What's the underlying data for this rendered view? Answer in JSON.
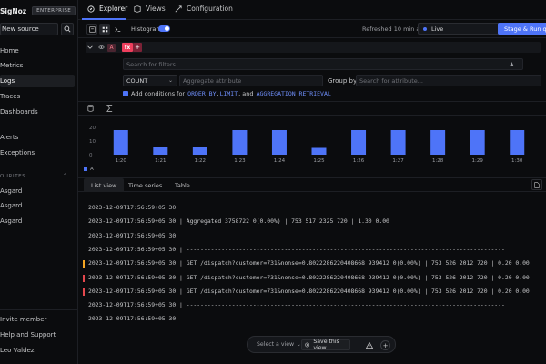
{
  "sidebar": {
    "brand": "SigNoz",
    "edition": "ENTERPRISE",
    "new_source": "New source",
    "nav": [
      {
        "label": "Home"
      },
      {
        "label": "Metrics"
      },
      {
        "label": "Logs",
        "active": true
      },
      {
        "label": "Traces"
      },
      {
        "label": "Dashboards"
      },
      {
        "label": "Alerts"
      },
      {
        "label": "Exceptions"
      }
    ],
    "favourites_title": "OURITES",
    "favourites": [
      "Asgard",
      "Asgard",
      "Asgard"
    ],
    "bottom": [
      "Invite member",
      "Help and Support",
      "Leo Valdez"
    ]
  },
  "tabs": [
    {
      "label": "Explorer",
      "active": true,
      "icon": "compass-icon"
    },
    {
      "label": "Views",
      "icon": "views-icon"
    },
    {
      "label": "Configuration",
      "icon": "config-icon"
    }
  ],
  "toolbar": {
    "histogram_label": "Histogram",
    "histogram_on": true,
    "refreshed": "Refreshed 10 min ago",
    "live": "Live",
    "stage_run": "Stage & Run query"
  },
  "query": {
    "letter": "A",
    "fx": "fx",
    "plus": "+",
    "filter_placeholder": "Search for filters...",
    "aggregate": "COUNT",
    "aggregate_attr_placeholder": "Aggregate attribute",
    "group_by_label": "Group by",
    "group_by_placeholder": "Search for attribute...",
    "add_conditions_prefix": "Add conditions for",
    "kw1": "ORDER BY",
    "kw2": "LIMIT",
    "kw3": "AGGREGATION RETRIEVAL",
    "sep1": ",",
    "sep2": ", and"
  },
  "chart_data": {
    "type": "bar",
    "categories": [
      "1:20",
      "1:21",
      "1:22",
      "1:23",
      "1:24",
      "1:25",
      "1:26",
      "1:27",
      "1:28",
      "1:29",
      "1:30"
    ],
    "values": [
      18,
      6,
      6,
      18,
      18,
      5,
      18,
      18,
      18,
      18,
      18
    ],
    "yticks": [
      "20",
      "10",
      "0"
    ],
    "ylim": [
      0,
      20
    ],
    "series_name": "A",
    "color": "#4e74f8",
    "legend": "bottom-left"
  },
  "view_tabs": [
    {
      "label": "List view",
      "active": true
    },
    {
      "label": "Time series"
    },
    {
      "label": "Table"
    }
  ],
  "logs": [
    {
      "text": "2023-12-09T17:56:59+05:30",
      "mark": ""
    },
    {
      "text": "2023-12-09T17:56:59+05:30 | Aggregated 3758722 0(0.00%) | 753 517 2325 720 | 1.30 0.00",
      "mark": ""
    },
    {
      "text": "2023-12-09T17:56:59+05:30",
      "mark": ""
    },
    {
      "text": "2023-12-09T17:56:59+05:30 | -------------------------------------------------------------------------------------------",
      "mark": ""
    },
    {
      "text": "2023-12-09T17:56:59+05:30 | GET /dispatch?customer=731&nonse=0.8022286220408668 939412 0(0.00%) | 753 526 2012 720 | 0.20 0.00",
      "mark": "#f5a623"
    },
    {
      "text": "2023-12-09T17:56:59+05:30 | GET /dispatch?customer=731&nonse=0.8022286220408668 939412 0(0.00%) | 753 526 2012 720 | 0.20 0.00",
      "mark": "#e5484d"
    },
    {
      "text": "2023-12-09T17:56:59+05:30 | GET /dispatch?customer=731&nonse=0.8022286220408668 939412 0(0.00%) | 753 526 2012 720 | 0.20 0.00",
      "mark": "#e5484d"
    },
    {
      "text": "2023-12-09T17:56:59+05:30 | -------------------------------------------------------------------------------------------",
      "mark": ""
    },
    {
      "text": "2023-12-09T17:56:59+05:30",
      "mark": ""
    }
  ],
  "floating": {
    "select_view": "Select a view",
    "save_view": "Save this view"
  }
}
